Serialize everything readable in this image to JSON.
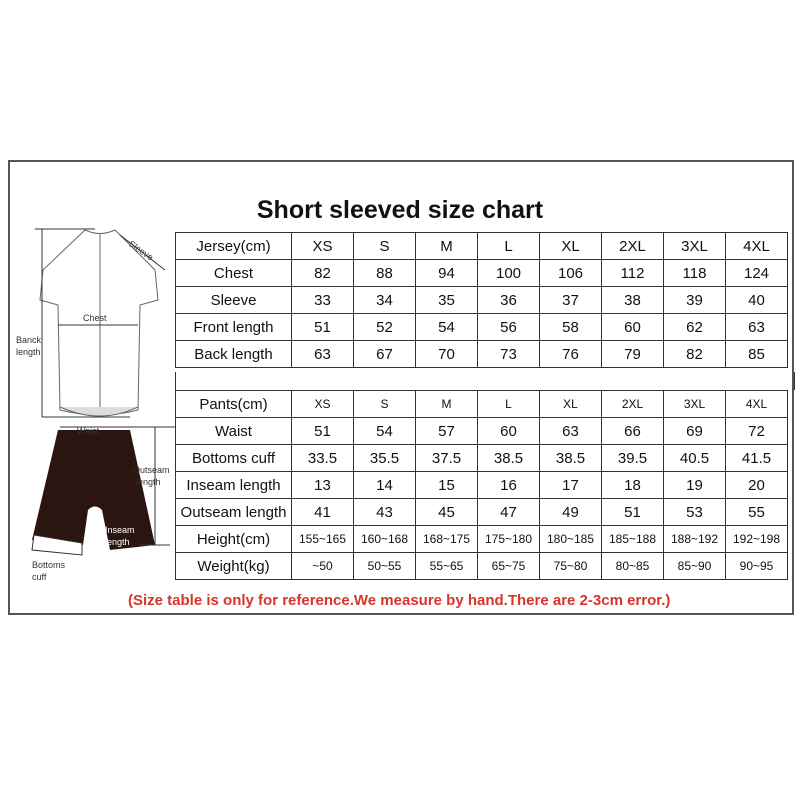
{
  "title": "Short sleeved size chart",
  "sizes": [
    "XS",
    "S",
    "M",
    "L",
    "XL",
    "2XL",
    "3XL",
    "4XL"
  ],
  "jersey": {
    "header": "Jersey(cm)",
    "rows": [
      {
        "label": "Chest",
        "values": [
          "82",
          "88",
          "94",
          "100",
          "106",
          "112",
          "118",
          "124"
        ]
      },
      {
        "label": "Sleeve",
        "values": [
          "33",
          "34",
          "35",
          "36",
          "37",
          "38",
          "39",
          "40"
        ]
      },
      {
        "label": "Front length",
        "values": [
          "51",
          "52",
          "54",
          "56",
          "58",
          "60",
          "62",
          "63"
        ]
      },
      {
        "label": "Back length",
        "values": [
          "63",
          "67",
          "70",
          "73",
          "76",
          "79",
          "82",
          "85"
        ]
      }
    ]
  },
  "pants": {
    "header": "Pants(cm)",
    "rows": [
      {
        "label": "Waist",
        "values": [
          "51",
          "54",
          "57",
          "60",
          "63",
          "66",
          "69",
          "72"
        ]
      },
      {
        "label": "Bottoms cuff",
        "values": [
          "33.5",
          "35.5",
          "37.5",
          "38.5",
          "38.5",
          "39.5",
          "40.5",
          "41.5"
        ]
      },
      {
        "label": "Inseam length",
        "values": [
          "13",
          "14",
          "15",
          "16",
          "17",
          "18",
          "19",
          "20"
        ]
      },
      {
        "label": "Outseam length",
        "values": [
          "41",
          "43",
          "45",
          "47",
          "49",
          "51",
          "53",
          "55"
        ]
      },
      {
        "label": "Height(cm)",
        "values": [
          "155~165",
          "160~168",
          "168~175",
          "175~180",
          "180~185",
          "185~188",
          "188~192",
          "192~198"
        ]
      },
      {
        "label": "Weight(kg)",
        "values": [
          "~50",
          "50~55",
          "55~65",
          "65~75",
          "75~80",
          "80~85",
          "85~90",
          "90~95"
        ]
      }
    ]
  },
  "note": "(Size table is only for reference.We measure by hand.There are 2-3cm error.)",
  "diagram_labels": {
    "sleeve": "Sleeve",
    "chest": "Chest",
    "back_length_1": "Banck",
    "back_length_2": "length",
    "waist": "Waist",
    "outseam_1": "Outseam",
    "outseam_2": "length",
    "inseam_1": "Inseam",
    "inseam_2": "length",
    "cuff_1": "Bottoms",
    "cuff_2": "cuff"
  },
  "colors": {
    "note": "#d9342b",
    "shorts": "#2a1510"
  }
}
